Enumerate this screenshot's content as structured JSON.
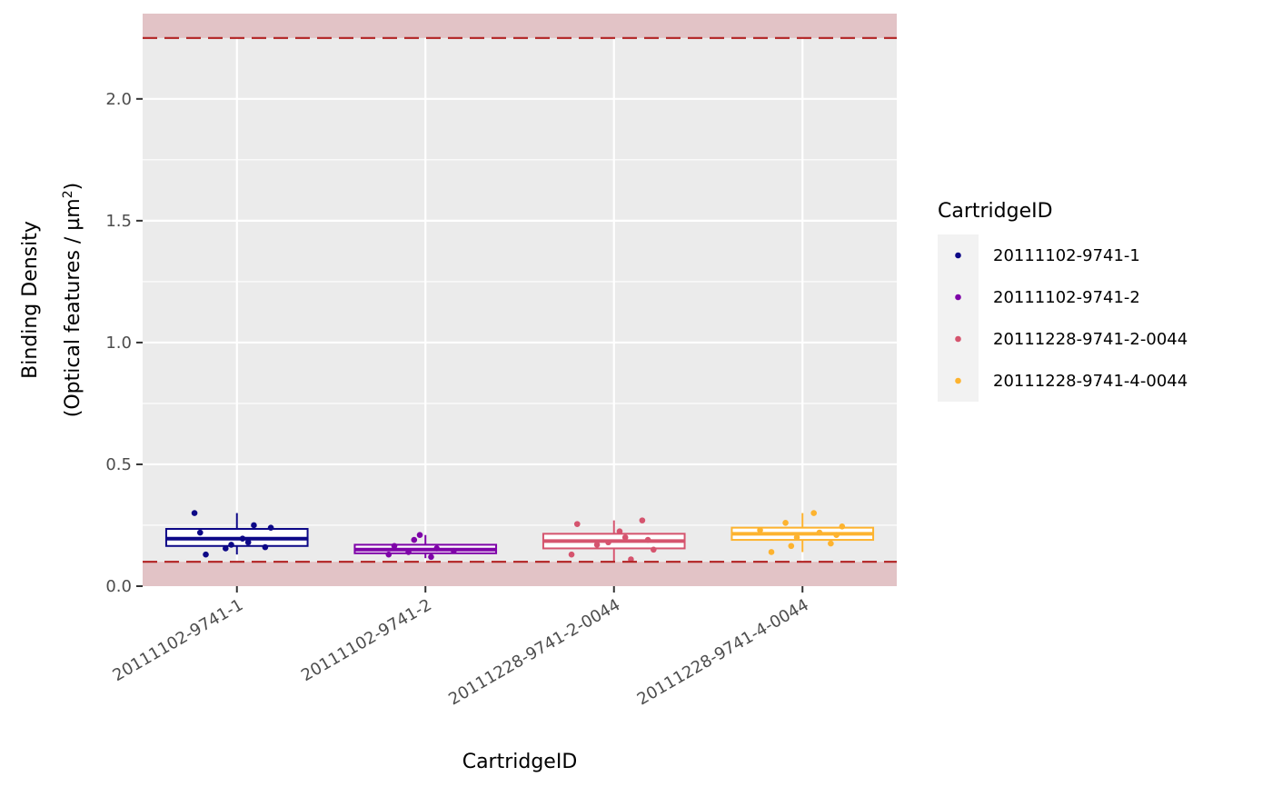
{
  "chart_data": {
    "type": "boxplot",
    "title": "",
    "xlabel": "CartridgeID",
    "ylabel_line1": "Binding Density",
    "ylabel_line2_prefix": "(Optical features / µm",
    "ylabel_line2_sup": "2",
    "ylabel_line2_suffix": ")",
    "ylim": [
      0,
      2.35
    ],
    "yticks": [
      {
        "value": 0.0,
        "label": "0.0"
      },
      {
        "value": 0.5,
        "label": "0.5"
      },
      {
        "value": 1.0,
        "label": "1.0"
      },
      {
        "value": 1.5,
        "label": "1.5"
      },
      {
        "value": 2.0,
        "label": "2.0"
      }
    ],
    "threshold_low": 0.1,
    "threshold_high": 2.25,
    "grid": true,
    "legend": {
      "title": "CartridgeID",
      "position": "right"
    },
    "colors": {
      "panel_bg": "#ebebeb",
      "grid": "#ffffff",
      "threshold_band": "#e2c3c6",
      "threshold_line": "#b22222"
    },
    "categories": [
      "20111102-9741-1",
      "20111102-9741-2",
      "20111228-9741-2-0044",
      "20111228-9741-4-0044"
    ],
    "series": [
      {
        "name": "20111102-9741-1",
        "color": "#0d0887",
        "box": {
          "min": 0.13,
          "q1": 0.165,
          "median": 0.195,
          "q3": 0.235,
          "max": 0.3
        },
        "points": [
          0.3,
          0.25,
          0.24,
          0.17,
          0.155,
          0.13,
          0.16,
          0.22,
          0.195,
          0.18
        ]
      },
      {
        "name": "20111102-9741-2",
        "color": "#7e03a8",
        "box": {
          "min": 0.115,
          "q1": 0.135,
          "median": 0.15,
          "q3": 0.17,
          "max": 0.21
        },
        "points": [
          0.21,
          0.19,
          0.165,
          0.145,
          0.13,
          0.12,
          0.155,
          0.14
        ]
      },
      {
        "name": "20111228-9741-2-0044",
        "color": "#d5546e",
        "box": {
          "min": 0.1,
          "q1": 0.155,
          "median": 0.185,
          "q3": 0.215,
          "max": 0.27
        },
        "points": [
          0.27,
          0.255,
          0.225,
          0.2,
          0.17,
          0.15,
          0.13,
          0.11,
          0.19,
          0.18
        ]
      },
      {
        "name": "20111228-9741-4-0044",
        "color": "#fdb32f",
        "box": {
          "min": 0.14,
          "q1": 0.19,
          "median": 0.215,
          "q3": 0.24,
          "max": 0.3
        },
        "points": [
          0.3,
          0.26,
          0.245,
          0.23,
          0.22,
          0.21,
          0.2,
          0.165,
          0.14,
          0.175
        ]
      }
    ]
  }
}
